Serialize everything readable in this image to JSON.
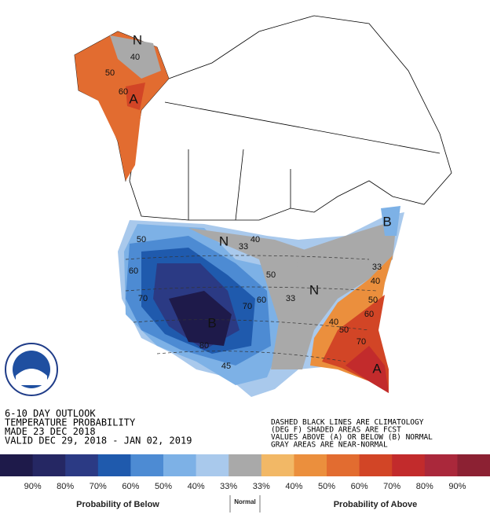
{
  "header": {
    "lines_left": [
      "6-10 DAY OUTLOOK",
      "TEMPERATURE PROBABILITY",
      "MADE  23 DEC 2018",
      "VALID  DEC 29, 2018 - JAN 02, 2019"
    ],
    "lines_right": [
      "DASHED BLACK LINES ARE CLIMATOLOGY",
      "(DEG F) SHADED AREAS ARE FCST",
      "VALUES ABOVE (A) OR BELOW (B) NORMAL",
      "GRAY AREAS ARE NEAR-NORMAL"
    ]
  },
  "map_labels": [
    "N",
    "40",
    "50",
    "60",
    "A",
    "N",
    "40",
    "33",
    "50",
    "60",
    "70",
    "B",
    "80",
    "70",
    "60",
    "50",
    "33",
    "N",
    "40",
    "50",
    "60",
    "70",
    "A",
    "33",
    "40",
    "50",
    "B",
    "45"
  ],
  "legend": {
    "colors": [
      "#1e1a4a",
      "#252763",
      "#2b3a84",
      "#1f5aad",
      "#4d8bd3",
      "#7db1e6",
      "#a9c9ec",
      "#a9a9a9",
      "#f2b866",
      "#eb8f3d",
      "#e26c30",
      "#d24526",
      "#c22b2c",
      "#aa283b",
      "#8c2133"
    ],
    "labels": [
      "90%",
      "80%",
      "70%",
      "60%",
      "50%",
      "40%",
      "33%",
      "33%",
      "40%",
      "50%",
      "60%",
      "70%",
      "80%",
      "90%"
    ],
    "below": "Probability of Below",
    "normal": "Normal",
    "above": "Probability of Above"
  }
}
